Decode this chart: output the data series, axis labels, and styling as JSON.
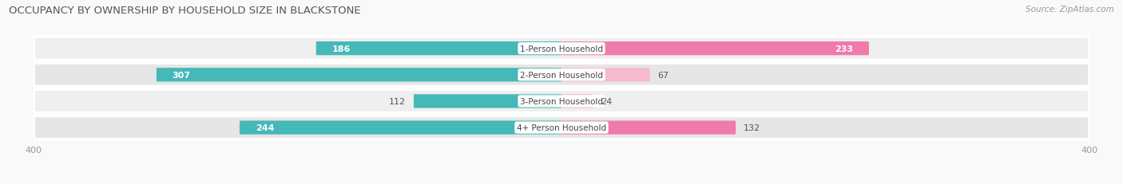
{
  "title": "OCCUPANCY BY OWNERSHIP BY HOUSEHOLD SIZE IN BLACKSTONE",
  "source": "Source: ZipAtlas.com",
  "categories": [
    "1-Person Household",
    "2-Person Household",
    "3-Person Household",
    "4+ Person Household"
  ],
  "owner_values": [
    186,
    307,
    112,
    244
  ],
  "renter_values": [
    233,
    67,
    24,
    132
  ],
  "owner_color": "#45b8b8",
  "renter_color": "#f07aaa",
  "renter_color_light": "#f7b8d0",
  "row_bg_colors": [
    "#efefef",
    "#e6e6e6",
    "#efefef",
    "#e6e6e6"
  ],
  "fig_bg_color": "#f9f9f9",
  "axis_max": 400,
  "center_label_bg": "#ffffff",
  "title_fontsize": 9.5,
  "source_fontsize": 7.5,
  "bar_label_fontsize": 8,
  "category_fontsize": 7.5,
  "legend_fontsize": 8,
  "owner_inside_threshold": 150,
  "renter_inside_threshold": 150
}
